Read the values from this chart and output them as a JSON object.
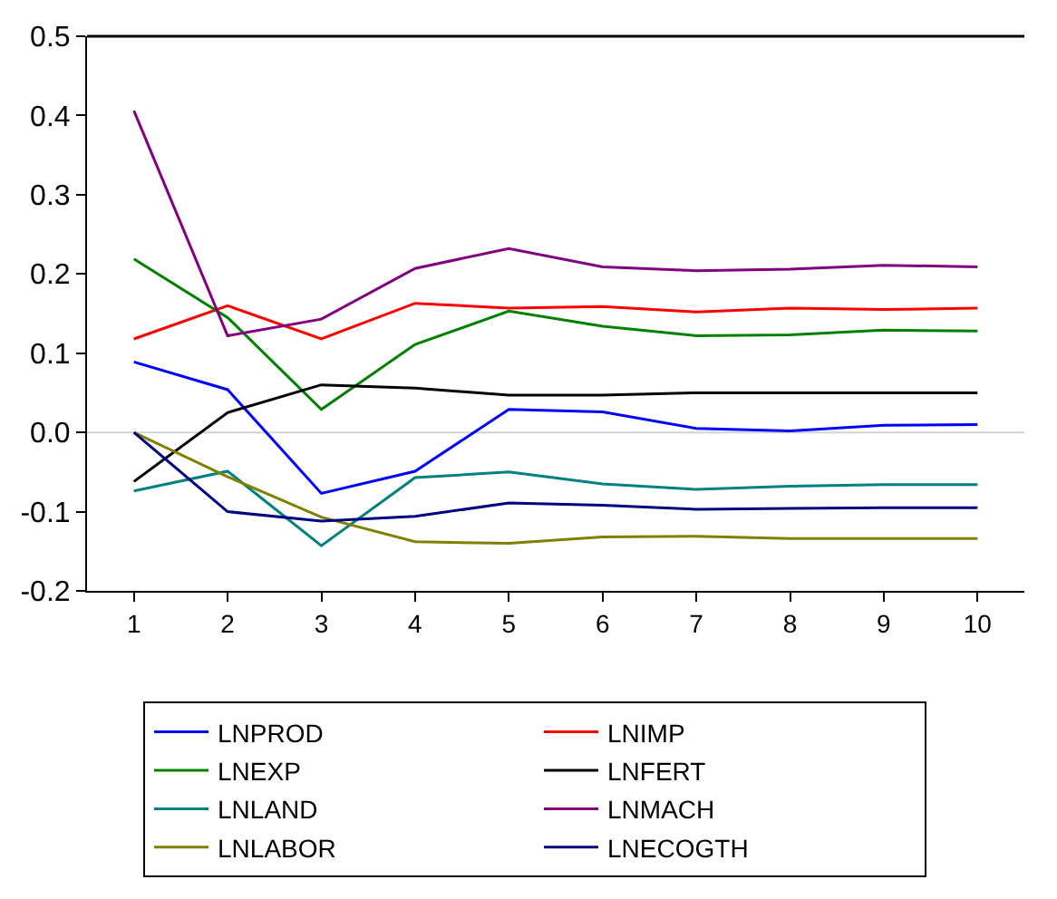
{
  "chart_data": {
    "type": "line",
    "x": [
      1,
      2,
      3,
      4,
      5,
      6,
      7,
      8,
      9,
      10
    ],
    "series": [
      {
        "name": "LNPROD",
        "color": "#0000ff",
        "values": [
          0.089,
          0.054,
          -0.077,
          -0.049,
          0.029,
          0.026,
          0.005,
          0.002,
          0.009,
          0.01
        ]
      },
      {
        "name": "LNIMP",
        "color": "#ff0000",
        "values": [
          0.118,
          0.16,
          0.118,
          0.163,
          0.157,
          0.159,
          0.152,
          0.157,
          0.155,
          0.157
        ]
      },
      {
        "name": "LNEXP",
        "color": "#008000",
        "values": [
          0.219,
          0.145,
          0.029,
          0.111,
          0.153,
          0.134,
          0.122,
          0.123,
          0.129,
          0.128
        ]
      },
      {
        "name": "LNFERT",
        "color": "#000000",
        "values": [
          -0.062,
          0.025,
          0.06,
          0.056,
          0.047,
          0.047,
          0.05,
          0.05,
          0.05,
          0.05
        ]
      },
      {
        "name": "LNLAND",
        "color": "#008080",
        "values": [
          -0.074,
          -0.049,
          -0.143,
          -0.057,
          -0.05,
          -0.065,
          -0.072,
          -0.068,
          -0.066,
          -0.066
        ]
      },
      {
        "name": "LNMACH",
        "color": "#800080",
        "values": [
          0.406,
          0.122,
          0.143,
          0.207,
          0.232,
          0.209,
          0.204,
          0.206,
          0.211,
          0.209
        ]
      },
      {
        "name": "LNLABOR",
        "color": "#808000",
        "values": [
          0.0,
          -0.056,
          -0.107,
          -0.138,
          -0.14,
          -0.132,
          -0.131,
          -0.134,
          -0.134,
          -0.134
        ]
      },
      {
        "name": "LNECOGTH",
        "color": "#000080",
        "values": [
          0.0,
          -0.1,
          -0.112,
          -0.106,
          -0.089,
          -0.092,
          -0.097,
          -0.096,
          -0.095,
          -0.095
        ]
      }
    ],
    "xlim": [
      0.5,
      10.5
    ],
    "xticks": [
      1,
      2,
      3,
      4,
      5,
      6,
      7,
      8,
      9,
      10
    ],
    "ylim": [
      -0.2,
      0.5
    ],
    "yticks": [
      {
        "value": -0.2,
        "label": "-0.2"
      },
      {
        "value": -0.1,
        "label": "-0.1"
      },
      {
        "value": 0,
        "label": "0.0"
      },
      0.1,
      0.2,
      0.3,
      0.4,
      0.5
    ],
    "ref_lines": [
      {
        "axis": "y",
        "value": 0,
        "color": "#d3d3d3"
      }
    ],
    "grid": false,
    "legend": "bottom",
    "marker": "none",
    "line_style": "solid"
  }
}
